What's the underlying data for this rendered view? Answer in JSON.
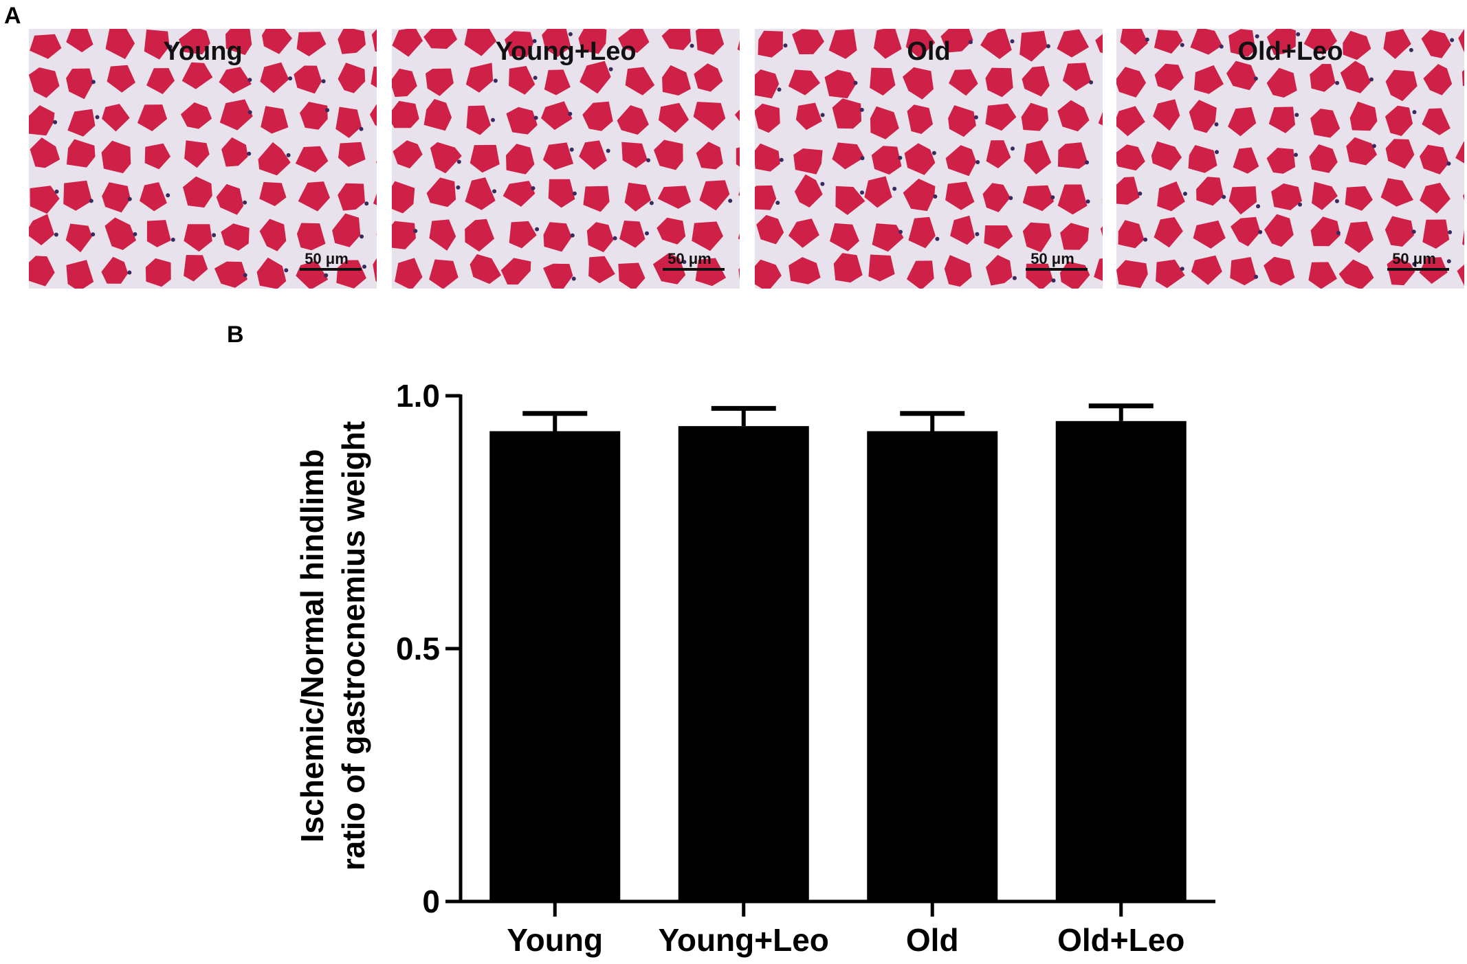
{
  "panel_a": {
    "letter": "A",
    "images": [
      {
        "label": "Young",
        "scale": "50 μm"
      },
      {
        "label": "Young+Leo",
        "scale": "50 μm"
      },
      {
        "label": "Old",
        "scale": "50 μm"
      },
      {
        "label": "Old+Leo",
        "scale": "50 μm"
      }
    ],
    "colors": {
      "muscle": "#cf2047",
      "stroma": "#e8e2ec",
      "nucleus": "#3a2a5e"
    }
  },
  "panel_b": {
    "letter": "B"
  },
  "chart_data": {
    "type": "bar",
    "categories": [
      "Young",
      "Young+Leo",
      "Old",
      "Old+Leo"
    ],
    "values": [
      0.93,
      0.94,
      0.93,
      0.95
    ],
    "errors": [
      0.035,
      0.035,
      0.035,
      0.03
    ],
    "ylabel_lines": [
      "Ischemic/Normal hindlimb",
      "ratio of gastrocnemius weight"
    ],
    "ylim": [
      0,
      1.0
    ],
    "yticks": [
      0,
      0.5,
      1.0
    ],
    "ytick_labels": [
      "0",
      "0.5",
      "1.0"
    ],
    "bar_color": "#000000",
    "grid": false
  }
}
